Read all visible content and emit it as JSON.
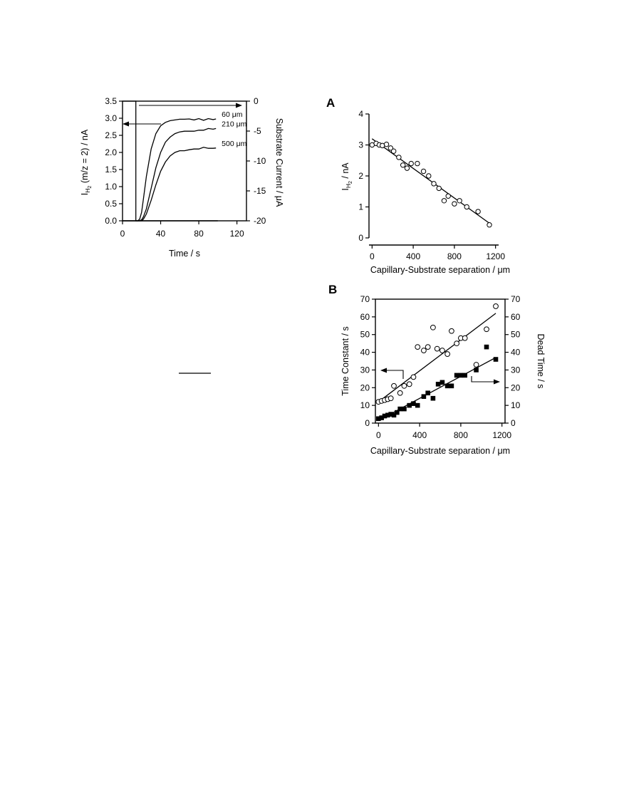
{
  "separator_rule": true,
  "chart_data": [
    {
      "id": "left",
      "type": "line",
      "title": "",
      "xlabel": "Time / s",
      "ylabel": "IH2 (m/z = 2) / nA",
      "ylabel_main": "I",
      "ylabel_sub": "H",
      "ylabel_subsub": "2",
      "ylabel_rest": " (m/z = 2) / nA",
      "y2label": "Substrate Current / μA",
      "xlim": [
        0,
        130
      ],
      "ylim": [
        0,
        3.5
      ],
      "y2lim": [
        -20,
        0
      ],
      "xticks": [
        "0",
        "40",
        "80",
        "120"
      ],
      "yticks": [
        "0.0",
        "0.5",
        "1.0",
        "1.5",
        "2.0",
        "2.5",
        "3.0",
        "3.5"
      ],
      "y2ticks": [
        "0",
        "-5",
        "-10",
        "-15",
        "-20"
      ],
      "substrate_current": {
        "x": [
          0,
          14,
          14,
          100
        ],
        "y": [
          0,
          0,
          -20,
          -20
        ]
      },
      "series": [
        {
          "name": "60 μm",
          "x": [
            0,
            16,
            18,
            20,
            22,
            25,
            30,
            35,
            40,
            45,
            50,
            55,
            60,
            65,
            70,
            75,
            80,
            85,
            90,
            95,
            98
          ],
          "y": [
            0,
            0,
            0.05,
            0.25,
            0.65,
            1.3,
            2.1,
            2.55,
            2.78,
            2.88,
            2.93,
            2.95,
            2.97,
            2.97,
            2.98,
            2.95,
            2.99,
            2.94,
            2.99,
            2.96,
            2.98
          ]
        },
        {
          "name": "210 μm",
          "x": [
            0,
            18,
            20,
            22,
            25,
            30,
            35,
            40,
            45,
            50,
            55,
            60,
            65,
            70,
            75,
            80,
            85,
            90,
            95,
            98
          ],
          "y": [
            0,
            0,
            0.03,
            0.12,
            0.35,
            0.95,
            1.55,
            2.0,
            2.3,
            2.45,
            2.55,
            2.6,
            2.62,
            2.62,
            2.62,
            2.65,
            2.65,
            2.7,
            2.68,
            2.7
          ]
        },
        {
          "name": "500 μm",
          "x": [
            0,
            20,
            22,
            25,
            30,
            35,
            40,
            45,
            50,
            55,
            60,
            65,
            70,
            75,
            80,
            85,
            90,
            95,
            98
          ],
          "y": [
            0,
            0,
            0.05,
            0.2,
            0.6,
            1.05,
            1.45,
            1.72,
            1.9,
            2.0,
            2.05,
            2.05,
            2.08,
            2.1,
            2.1,
            2.15,
            2.12,
            2.12,
            2.13
          ]
        }
      ],
      "baseline": {
        "x": [
          14,
          100
        ],
        "y": [
          0,
          0
        ]
      }
    },
    {
      "id": "A",
      "panel_label": "A",
      "type": "scatter",
      "title": "",
      "xlabel": "Capillary-Substrate separation / μm",
      "ylabel": "IH2 / nA",
      "ylabel_main": "I",
      "ylabel_sub": "H",
      "ylabel_subsub": "2",
      "ylabel_rest": " / nA",
      "xlim": [
        -30,
        1230
      ],
      "ylim": [
        0,
        4
      ],
      "xticks": [
        "0",
        "400",
        "800",
        "1200"
      ],
      "yticks": [
        "0",
        "1",
        "2",
        "3",
        "4"
      ],
      "x": [
        0,
        40,
        70,
        100,
        140,
        180,
        210,
        260,
        300,
        340,
        380,
        440,
        500,
        550,
        600,
        650,
        700,
        740,
        800,
        850,
        920,
        1030,
        1140
      ],
      "y": [
        3.0,
        3.05,
        3.0,
        2.98,
        3.02,
        2.9,
        2.8,
        2.6,
        2.35,
        2.25,
        2.4,
        2.4,
        2.15,
        2.0,
        1.75,
        1.6,
        1.2,
        1.35,
        1.1,
        1.2,
        1.0,
        0.85,
        0.42
      ],
      "fit": {
        "x": [
          0,
          1150
        ],
        "y": [
          3.2,
          0.45
        ]
      }
    },
    {
      "id": "B",
      "panel_label": "B",
      "type": "scatter",
      "title": "",
      "xlabel": "Capillary-Substrate separation / μm",
      "ylabel": "Time Constant / s",
      "y2label": "Dead Time / s",
      "xlim": [
        -30,
        1230
      ],
      "ylim": [
        0,
        70
      ],
      "y2lim": [
        0,
        70
      ],
      "xticks": [
        "0",
        "400",
        "800",
        "1200"
      ],
      "yticks": [
        "0",
        "10",
        "20",
        "30",
        "40",
        "50",
        "60",
        "70"
      ],
      "y2ticks": [
        "0",
        "10",
        "20",
        "30",
        "40",
        "50",
        "60",
        "70"
      ],
      "series": [
        {
          "marker": "open-circle",
          "axis": "left",
          "x": [
            0,
            30,
            60,
            90,
            120,
            150,
            210,
            250,
            300,
            340,
            380,
            440,
            480,
            530,
            570,
            620,
            670,
            710,
            760,
            800,
            840,
            950,
            1050,
            1140
          ],
          "y": [
            12,
            12.5,
            13,
            13.5,
            14,
            21,
            17,
            21,
            22,
            26,
            43,
            41,
            43,
            54,
            42,
            41,
            39,
            52,
            45,
            48,
            48,
            33,
            53,
            66
          ],
          "fit": {
            "x": [
              0,
              1140
            ],
            "y": [
              12,
              62
            ]
          }
        },
        {
          "marker": "filled-square",
          "axis": "right",
          "x": [
            0,
            30,
            60,
            90,
            120,
            150,
            180,
            210,
            250,
            300,
            340,
            380,
            440,
            480,
            530,
            580,
            620,
            670,
            710,
            760,
            800,
            840,
            950,
            1050,
            1140
          ],
          "y": [
            2.5,
            3,
            4,
            4.5,
            5,
            4.5,
            6,
            8,
            8,
            10,
            11,
            10,
            15,
            17,
            14,
            22,
            23,
            21,
            21,
            27,
            27,
            27,
            30,
            43,
            36
          ],
          "fit": {
            "x": [
              0,
              1140
            ],
            "y": [
              1.5,
              37
            ]
          }
        }
      ]
    }
  ]
}
